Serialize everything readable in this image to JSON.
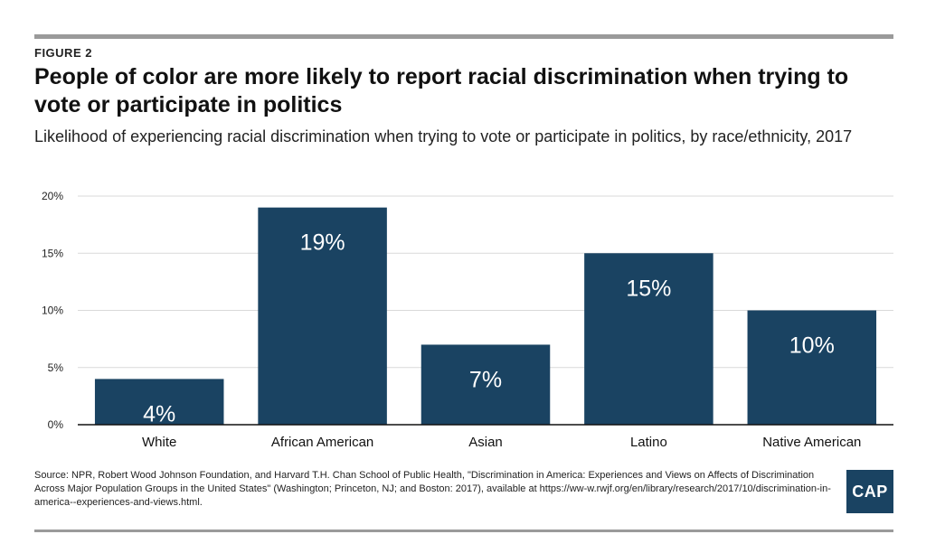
{
  "figure_label": "FIGURE 2",
  "source_note": "Source: NPR, Robert Wood Johnson Foundation, and Harvard T.H. Chan School of Public Health, \"Discrimination in America: Experiences and Views on Affects of Discrimination Across Major Population Groups in the United States\" (Washington; Princeton, NJ; and Boston: 2017), available at https://ww-w.rwjf.org/en/library/research/2017/10/discrimination-in-america--experiences-and-views.html.",
  "logo_text": "CAP",
  "colors": {
    "bar": "#1a4362",
    "bar_label": "#ffffff",
    "grid": "#d9d9d9",
    "axis": "#111111"
  },
  "chart_data": {
    "type": "bar",
    "title": "People of color are more likely to report racial discrimination when trying to vote or participate in politics",
    "subtitle": "Likelihood of experiencing racial discrimination when trying to vote or participate in politics, by race/ethnicity, 2017",
    "categories": [
      "White",
      "African American",
      "Asian",
      "Latino",
      "Native American"
    ],
    "values": [
      4,
      19,
      7,
      15,
      10
    ],
    "data_labels": [
      "4%",
      "19%",
      "7%",
      "15%",
      "10%"
    ],
    "ylim": [
      0,
      20
    ],
    "yticks": [
      0,
      5,
      10,
      15,
      20
    ],
    "ytick_labels": [
      "0%",
      "5%",
      "10%",
      "15%",
      "20%"
    ],
    "xlabel": "",
    "ylabel": "",
    "grid": true,
    "legend": "none"
  }
}
